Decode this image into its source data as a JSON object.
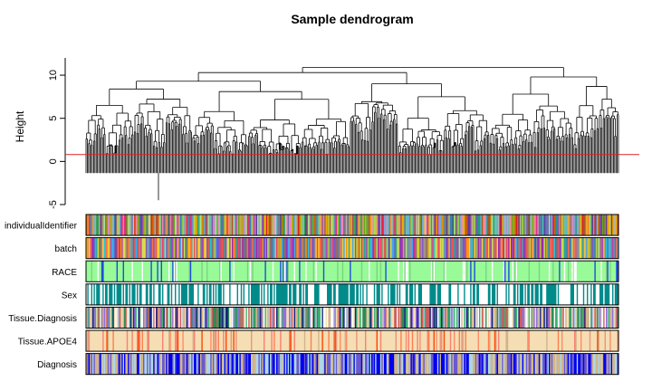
{
  "chart_data": {
    "type": "dendrogram",
    "title": "Sample dendrogram",
    "ylabel": "Height",
    "ylim": [
      -5,
      12
    ],
    "yticks": [
      -5,
      0,
      5,
      10
    ],
    "cut_height": 0.8,
    "cut_line_color": "#dd2222",
    "n_leaves": 420,
    "top_merge_heights": [
      11.5,
      10.9,
      10.3,
      9.8,
      9.3,
      9.0,
      8.7,
      8.4,
      8.1,
      7.8,
      7.5,
      7.2
    ],
    "outlier_leaf_height": -4.5,
    "color_rows": [
      {
        "label": "individualIdentifier",
        "palette": [
          "#e41a1c",
          "#377eb8",
          "#4daf4a",
          "#984ea3",
          "#ff7f00",
          "#c8a000",
          "#a65628",
          "#f781bf",
          "#6baed6",
          "#66c2a5",
          "#fc8d62",
          "#8da0cb",
          "#e78ac3",
          "#a6d854",
          "#d4b44a",
          "#b3b3b3",
          "#1b9e77",
          "#d95f02",
          "#7570b3",
          "#e7298a",
          "#66a61e",
          "#e6ab02",
          "#5e3c99",
          "#b2df8a"
        ],
        "dominant": null
      },
      {
        "label": "batch",
        "palette": [
          "#9c27b0",
          "#ff9800",
          "#26a69a",
          "#ef5350",
          "#5c6bc0",
          "#c0ca33",
          "#8d6e63",
          "#ec407a",
          "#42a5f5",
          "#7e57c2",
          "#ffca28",
          "#26c6da",
          "#d4e157",
          "#ab47bc",
          "#78909c",
          "#ff7043"
        ],
        "dominant": null
      },
      {
        "label": "RACE",
        "palette": [
          "#98fb98",
          "#1e4fd8",
          "#ffffff",
          "#7fd37f"
        ],
        "dominant": "#98fb98"
      },
      {
        "label": "Sex",
        "palette": [
          "#008b8b",
          "#ffffff"
        ],
        "dominant": null
      },
      {
        "label": "Tissue.Diagnosis",
        "palette": [
          "#3cb371",
          "#1a237e",
          "#f5deb3",
          "#d2b48c",
          "#ffffff",
          "#b0c4de",
          "#cd5c5c",
          "#2e8b57",
          "#9370db"
        ],
        "dominant": null
      },
      {
        "label": "Tissue.APOE4",
        "palette": [
          "#f5deb3",
          "#ff8c69",
          "#ff4500",
          "#fa8072",
          "#d2b48c",
          "#ff7f50",
          "#e9967a"
        ],
        "dominant": "#f5deb3"
      },
      {
        "label": "Diagnosis",
        "palette": [
          "#0000ee",
          "#d2b48c",
          "#add8e6",
          "#6a5acd"
        ],
        "dominant": null
      }
    ]
  }
}
